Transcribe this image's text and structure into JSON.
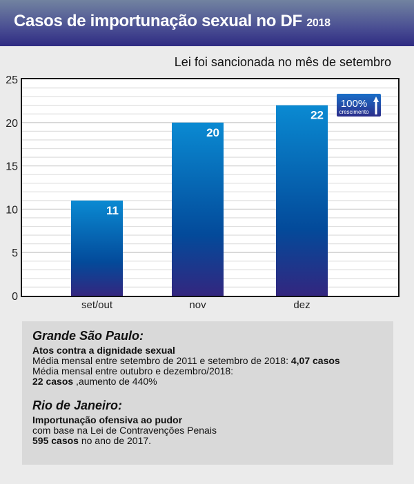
{
  "header": {
    "title": "Casos de importunação sexual no DF",
    "year": "2018"
  },
  "subtitle": "Lei foi sancionada no mês de setembro",
  "badge": {
    "value": "100%",
    "label": "crescimento"
  },
  "chart_data": {
    "type": "bar",
    "title": "Casos de importunação sexual no DF 2018",
    "categories": [
      "set/out",
      "nov",
      "dez"
    ],
    "values": [
      11,
      20,
      22
    ],
    "ylim": [
      0,
      25
    ],
    "yticks": [
      0,
      5,
      10,
      15,
      20,
      25
    ],
    "grid": true,
    "colors": {
      "top": "#0a8ad2",
      "mid": "#034a9a",
      "bottom": "#33267f"
    }
  },
  "info": {
    "sp": {
      "heading": "Grande São Paulo:",
      "subheading": "Atos contra a dignidade sexual",
      "line1": "Média mensal entre setembro de 2011 e setembro de 2018: ",
      "line1_bold": "4,07 casos",
      "line2": "Média mensal entre outubro e dezembro/2018:",
      "line3_bold": "22 casos",
      "line3": " ,aumento de 440%"
    },
    "rj": {
      "heading": "Rio de Janeiro:",
      "subheading": "Importunação ofensiva ao pudor",
      "line1": "com base na Lei de Contravenções Penais",
      "line2_bold": "595 casos",
      "line2": " no ano de 2017."
    }
  }
}
